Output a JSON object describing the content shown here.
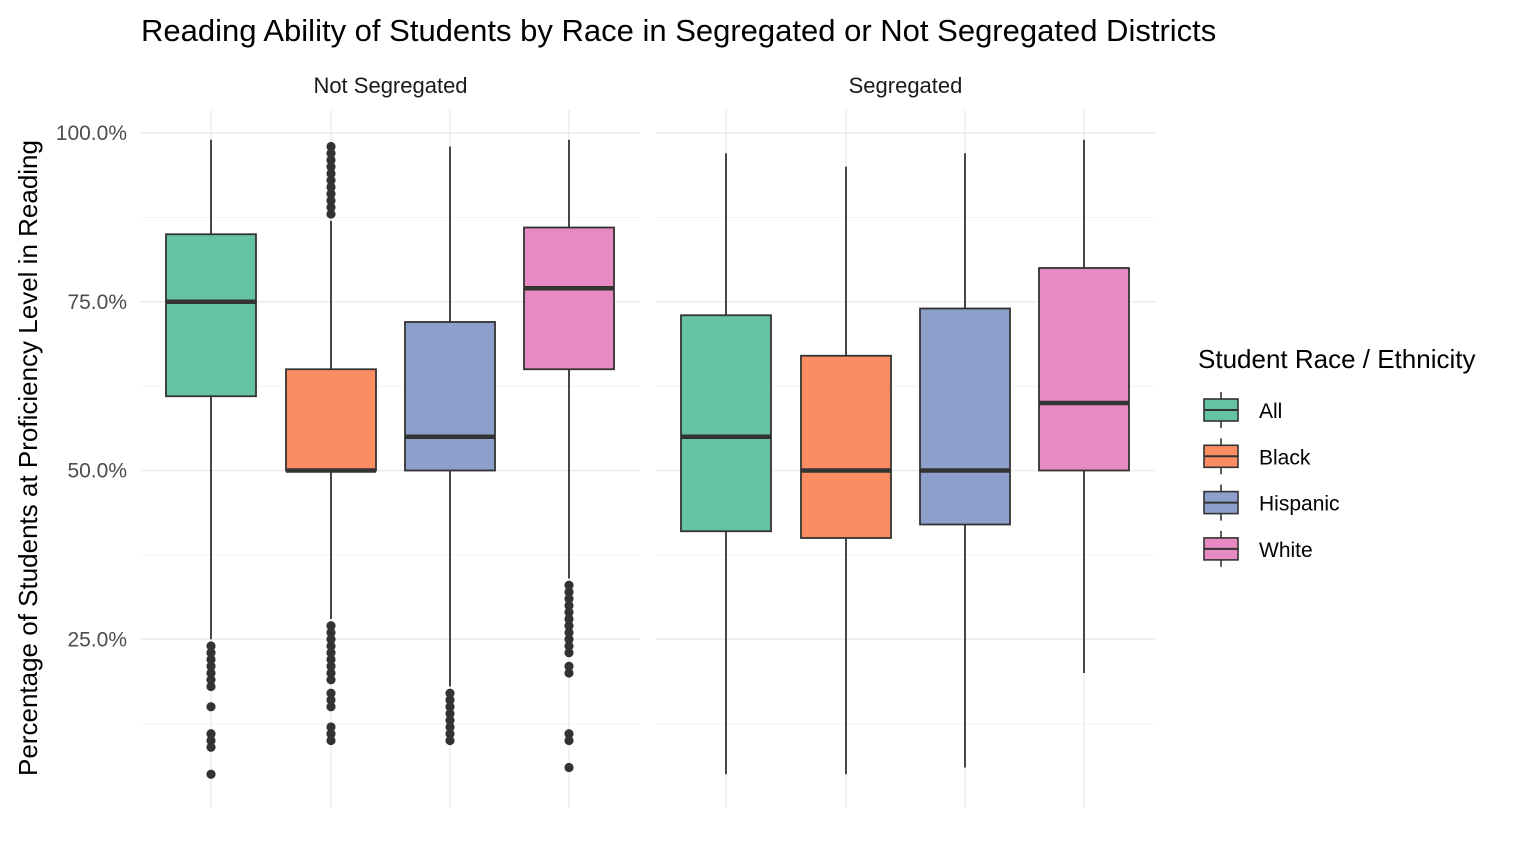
{
  "chart_data": {
    "type": "boxplot",
    "title": "Reading Ability of Students by Race in Segregated or Not Segregated Districts",
    "ylabel": "Percentage of Students at Proficiency Level in Reading",
    "xlabel": "",
    "ylim": [
      0,
      100
    ],
    "y_ticks": [
      25,
      50,
      75,
      100
    ],
    "y_tick_labels": [
      "25.0%",
      "50.0%",
      "75.0%",
      "100.0%"
    ],
    "grid": true,
    "legend": {
      "title": "Student Race / Ethnicity",
      "position": "right",
      "entries": [
        {
          "name": "All",
          "color": "#66c2a5"
        },
        {
          "name": "Black",
          "color": "#fc8d62"
        },
        {
          "name": "Hispanic",
          "color": "#8da0cb"
        },
        {
          "name": "White",
          "color": "#e78ac3"
        }
      ]
    },
    "facets": [
      {
        "label": "Not Segregated",
        "boxes": [
          {
            "group": "All",
            "whisker_low": 25,
            "q1": 61,
            "median": 75,
            "q3": 85,
            "whisker_high": 99,
            "outliers": [
              24,
              23,
              22,
              21,
              20,
              19,
              18,
              15,
              11,
              10,
              9,
              5
            ]
          },
          {
            "group": "Black",
            "whisker_low": 28,
            "q1": 50,
            "median": 50,
            "q3": 65,
            "whisker_high": 87,
            "outliers": [
              98,
              97,
              96,
              95,
              94,
              93,
              92,
              91,
              90,
              89,
              88,
              27,
              26,
              25,
              24,
              23,
              22,
              21,
              20,
              19,
              17,
              16,
              15,
              12,
              11,
              10
            ]
          },
          {
            "group": "Hispanic",
            "whisker_low": 18,
            "q1": 50,
            "median": 55,
            "q3": 72,
            "whisker_high": 98,
            "outliers": [
              17,
              16,
              15,
              14,
              13,
              12,
              11,
              10
            ]
          },
          {
            "group": "White",
            "whisker_low": 34,
            "q1": 65,
            "median": 77,
            "q3": 86,
            "whisker_high": 99,
            "outliers": [
              33,
              32,
              31,
              30,
              29,
              28,
              27,
              26,
              25,
              24,
              23,
              21,
              20,
              11,
              10,
              6
            ]
          }
        ]
      },
      {
        "label": "Segregated",
        "boxes": [
          {
            "group": "All",
            "whisker_low": 5,
            "q1": 41,
            "median": 55,
            "q3": 73,
            "whisker_high": 97,
            "outliers": []
          },
          {
            "group": "Black",
            "whisker_low": 5,
            "q1": 40,
            "median": 50,
            "q3": 67,
            "whisker_high": 95,
            "outliers": []
          },
          {
            "group": "Hispanic",
            "whisker_low": 6,
            "q1": 42,
            "median": 50,
            "q3": 74,
            "whisker_high": 97,
            "outliers": []
          },
          {
            "group": "White",
            "whisker_low": 20,
            "q1": 50,
            "median": 60,
            "q3": 80,
            "whisker_high": 99,
            "outliers": []
          }
        ]
      }
    ]
  }
}
